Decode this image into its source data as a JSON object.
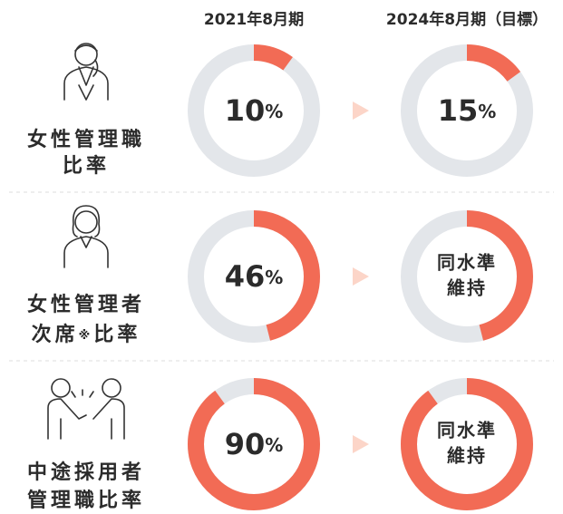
{
  "columns": [
    "2021年8月期",
    "2024年8月期（目標）"
  ],
  "colors": {
    "fill": "#f26b55",
    "track": "#e3e6ea",
    "arrow": "#fcd5c8"
  },
  "rows": [
    {
      "label": [
        "女性管理職",
        "比率"
      ],
      "current": {
        "type": "donut",
        "value": 10,
        "value_label": "10%"
      },
      "target": {
        "type": "donut",
        "value": 15,
        "value_label": "15%"
      }
    },
    {
      "label": [
        "女性管理者",
        "次席※比率"
      ],
      "current": {
        "type": "donut",
        "value": 46,
        "value_label": "46%"
      },
      "target": {
        "type": "donut",
        "value": 46,
        "text": [
          "同水準",
          "維持"
        ]
      }
    },
    {
      "label": [
        "中途採用者",
        "管理職比率"
      ],
      "current": {
        "type": "donut",
        "value": 90,
        "value_label": "90%"
      },
      "target": {
        "type": "donut",
        "value": 90,
        "text": [
          "同水準",
          "維持"
        ]
      }
    }
  ]
}
